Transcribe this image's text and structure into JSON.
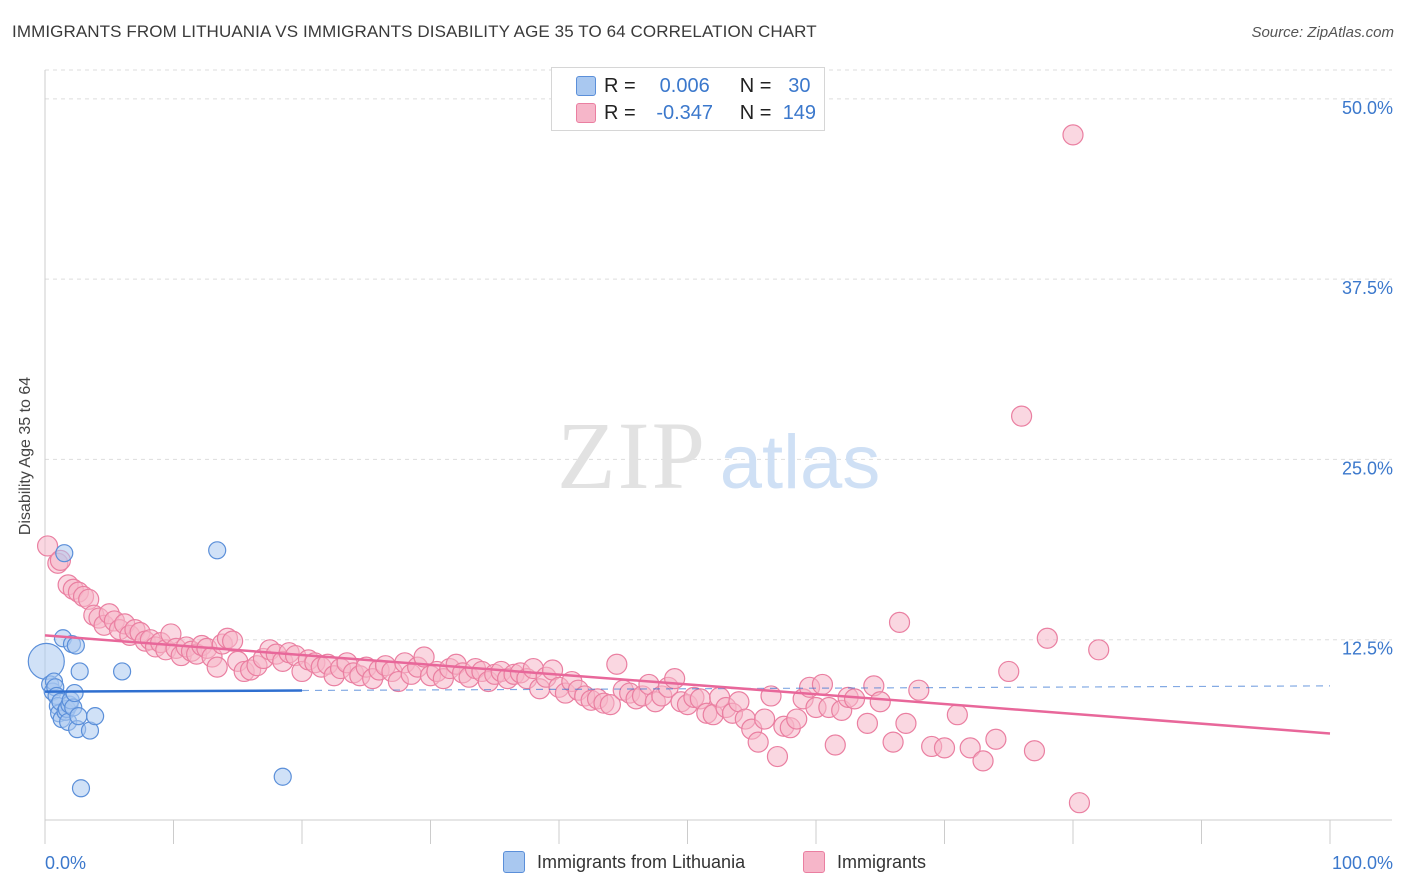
{
  "title": "IMMIGRANTS FROM LITHUANIA VS IMMIGRANTS DISABILITY AGE 35 TO 64 CORRELATION CHART",
  "source": "Source: ZipAtlas.com",
  "watermark": {
    "zip": "ZIP",
    "atlas": "atlas"
  },
  "stats": {
    "r_label": "R =",
    "n_label": "N =",
    "series1": {
      "r": "0.006",
      "n": "30"
    },
    "series2": {
      "r": "-0.347",
      "n": "149"
    }
  },
  "colors": {
    "blue_fill": "#a9c8f0",
    "blue_stroke": "#5b8fd9",
    "blue_line": "#2f6fd0",
    "pink_fill": "#f6b6c9",
    "pink_stroke": "#ea7fa1",
    "pink_line": "#e8679a",
    "tick_text": "#3b78cc",
    "grid": "#dddddd"
  },
  "chart_data": {
    "type": "scatter",
    "title": "IMMIGRANTS FROM LITHUANIA VS IMMIGRANTS DISABILITY AGE 35 TO 64 CORRELATION CHART",
    "xlabel": "",
    "ylabel": "Disability Age 35 to 64",
    "xlim": [
      0,
      100
    ],
    "ylim": [
      0,
      52
    ],
    "x_tick_labels": [
      "0.0%",
      "100.0%"
    ],
    "y_ticks": [
      12.5,
      25.0,
      37.5,
      50.0
    ],
    "y_tick_labels": [
      "12.5%",
      "25.0%",
      "37.5%",
      "50.0%"
    ],
    "grid": true,
    "legend_position": "bottom",
    "series": [
      {
        "name": "Immigrants from Lithuania",
        "r": 0.006,
        "n": 30,
        "trend": {
          "x": [
            0,
            100
          ],
          "y": [
            8.9,
            9.3
          ],
          "solid_until_x": 20
        },
        "points": [
          [
            0.1,
            11.0
          ],
          [
            0.4,
            9.4
          ],
          [
            0.6,
            8.9
          ],
          [
            0.7,
            9.6
          ],
          [
            0.8,
            9.2
          ],
          [
            0.9,
            8.6
          ],
          [
            1.0,
            7.9
          ],
          [
            1.1,
            7.4
          ],
          [
            1.2,
            8.2
          ],
          [
            1.3,
            7.0
          ],
          [
            1.4,
            12.6
          ],
          [
            1.5,
            18.5
          ],
          [
            1.6,
            7.5
          ],
          [
            1.7,
            7.7
          ],
          [
            1.8,
            6.8
          ],
          [
            1.9,
            8.0
          ],
          [
            2.0,
            8.3
          ],
          [
            2.1,
            12.2
          ],
          [
            2.2,
            7.8
          ],
          [
            2.3,
            8.8
          ],
          [
            2.4,
            12.1
          ],
          [
            2.5,
            6.3
          ],
          [
            2.6,
            7.2
          ],
          [
            2.7,
            10.3
          ],
          [
            2.8,
            2.2
          ],
          [
            3.5,
            6.2
          ],
          [
            3.9,
            7.2
          ],
          [
            6.0,
            10.3
          ],
          [
            13.4,
            18.7
          ],
          [
            18.5,
            3.0
          ]
        ]
      },
      {
        "name": "Immigrants",
        "r": -0.347,
        "n": 149,
        "trend": {
          "x": [
            0,
            100
          ],
          "y": [
            12.8,
            6.0
          ]
        },
        "points": [
          [
            0.2,
            19.0
          ],
          [
            1.0,
            17.8
          ],
          [
            1.2,
            18.0
          ],
          [
            1.8,
            16.3
          ],
          [
            2.2,
            16.0
          ],
          [
            2.6,
            15.8
          ],
          [
            3.0,
            15.5
          ],
          [
            3.4,
            15.3
          ],
          [
            3.8,
            14.2
          ],
          [
            4.2,
            14.0
          ],
          [
            4.6,
            13.5
          ],
          [
            5.0,
            14.3
          ],
          [
            5.4,
            13.8
          ],
          [
            5.8,
            13.2
          ],
          [
            6.2,
            13.6
          ],
          [
            6.6,
            12.8
          ],
          [
            7.0,
            13.2
          ],
          [
            7.4,
            13.0
          ],
          [
            7.8,
            12.4
          ],
          [
            8.2,
            12.5
          ],
          [
            8.6,
            12.0
          ],
          [
            9.0,
            12.3
          ],
          [
            9.4,
            11.8
          ],
          [
            9.8,
            12.9
          ],
          [
            10.2,
            11.9
          ],
          [
            10.6,
            11.4
          ],
          [
            11.0,
            12.0
          ],
          [
            11.4,
            11.7
          ],
          [
            11.8,
            11.5
          ],
          [
            12.2,
            12.1
          ],
          [
            12.6,
            11.9
          ],
          [
            13.0,
            11.3
          ],
          [
            13.4,
            10.6
          ],
          [
            13.8,
            12.2
          ],
          [
            14.2,
            12.6
          ],
          [
            14.6,
            12.4
          ],
          [
            15.0,
            11.0
          ],
          [
            15.5,
            10.3
          ],
          [
            16.0,
            10.4
          ],
          [
            16.5,
            10.7
          ],
          [
            17.0,
            11.2
          ],
          [
            17.5,
            11.8
          ],
          [
            18.0,
            11.5
          ],
          [
            18.5,
            11.0
          ],
          [
            19.0,
            11.6
          ],
          [
            19.5,
            11.4
          ],
          [
            20.0,
            10.3
          ],
          [
            20.5,
            11.1
          ],
          [
            21.0,
            10.9
          ],
          [
            21.5,
            10.6
          ],
          [
            22.0,
            10.8
          ],
          [
            22.5,
            10.0
          ],
          [
            23.0,
            10.5
          ],
          [
            23.5,
            10.9
          ],
          [
            24.0,
            10.2
          ],
          [
            24.5,
            10.0
          ],
          [
            25.0,
            10.6
          ],
          [
            25.5,
            9.8
          ],
          [
            26.0,
            10.4
          ],
          [
            26.5,
            10.7
          ],
          [
            27.0,
            10.3
          ],
          [
            27.5,
            9.6
          ],
          [
            28.0,
            10.9
          ],
          [
            28.5,
            10.1
          ],
          [
            29.0,
            10.6
          ],
          [
            29.5,
            11.3
          ],
          [
            30.0,
            10.0
          ],
          [
            30.5,
            10.3
          ],
          [
            31.0,
            9.8
          ],
          [
            31.5,
            10.5
          ],
          [
            32.0,
            10.8
          ],
          [
            32.5,
            10.2
          ],
          [
            33.0,
            9.9
          ],
          [
            33.5,
            10.5
          ],
          [
            34.0,
            10.3
          ],
          [
            34.5,
            9.6
          ],
          [
            35.0,
            10.1
          ],
          [
            35.5,
            10.3
          ],
          [
            36.0,
            9.8
          ],
          [
            36.5,
            10.1
          ],
          [
            37.0,
            10.2
          ],
          [
            37.5,
            9.8
          ],
          [
            38.0,
            10.5
          ],
          [
            38.5,
            9.1
          ],
          [
            39.0,
            9.9
          ],
          [
            39.5,
            10.4
          ],
          [
            40.0,
            9.2
          ],
          [
            40.5,
            8.8
          ],
          [
            41.0,
            9.6
          ],
          [
            41.5,
            9.0
          ],
          [
            42.0,
            8.6
          ],
          [
            42.5,
            8.3
          ],
          [
            43.0,
            8.4
          ],
          [
            43.5,
            8.1
          ],
          [
            44.0,
            8.0
          ],
          [
            44.5,
            10.8
          ],
          [
            45.0,
            9.0
          ],
          [
            45.5,
            8.8
          ],
          [
            46.0,
            8.4
          ],
          [
            46.5,
            8.6
          ],
          [
            47.0,
            9.4
          ],
          [
            47.5,
            8.2
          ],
          [
            48.0,
            8.6
          ],
          [
            48.5,
            9.2
          ],
          [
            49.0,
            9.8
          ],
          [
            49.5,
            8.2
          ],
          [
            50.0,
            8.0
          ],
          [
            50.5,
            8.5
          ],
          [
            51.0,
            8.4
          ],
          [
            51.5,
            7.4
          ],
          [
            52.0,
            7.3
          ],
          [
            52.5,
            8.5
          ],
          [
            53.0,
            7.8
          ],
          [
            53.5,
            7.4
          ],
          [
            54.0,
            8.2
          ],
          [
            54.5,
            7.0
          ],
          [
            55.0,
            6.3
          ],
          [
            55.5,
            5.4
          ],
          [
            56.0,
            7.0
          ],
          [
            56.5,
            8.6
          ],
          [
            57.0,
            4.4
          ],
          [
            57.5,
            6.5
          ],
          [
            58.0,
            6.4
          ],
          [
            58.5,
            7.0
          ],
          [
            59.0,
            8.4
          ],
          [
            59.5,
            9.2
          ],
          [
            60.0,
            7.8
          ],
          [
            60.5,
            9.4
          ],
          [
            61.0,
            7.8
          ],
          [
            61.5,
            5.2
          ],
          [
            62.0,
            7.6
          ],
          [
            62.5,
            8.5
          ],
          [
            63.0,
            8.4
          ],
          [
            64.0,
            6.7
          ],
          [
            64.5,
            9.3
          ],
          [
            65.0,
            8.2
          ],
          [
            66.0,
            5.4
          ],
          [
            66.5,
            13.7
          ],
          [
            67.0,
            6.7
          ],
          [
            68.0,
            9.0
          ],
          [
            69.0,
            5.1
          ],
          [
            70.0,
            5.0
          ],
          [
            71.0,
            7.3
          ],
          [
            72.0,
            5.0
          ],
          [
            73.0,
            4.1
          ],
          [
            74.0,
            5.6
          ],
          [
            75.0,
            10.3
          ],
          [
            76.0,
            28.0
          ],
          [
            77.0,
            4.8
          ],
          [
            78.0,
            12.6
          ],
          [
            80.0,
            47.5
          ],
          [
            80.5,
            1.2
          ],
          [
            82.0,
            11.8
          ]
        ]
      }
    ]
  },
  "bottom_legend": {
    "series1_label": "Immigrants from Lithuania",
    "series2_label": "Immigrants"
  }
}
